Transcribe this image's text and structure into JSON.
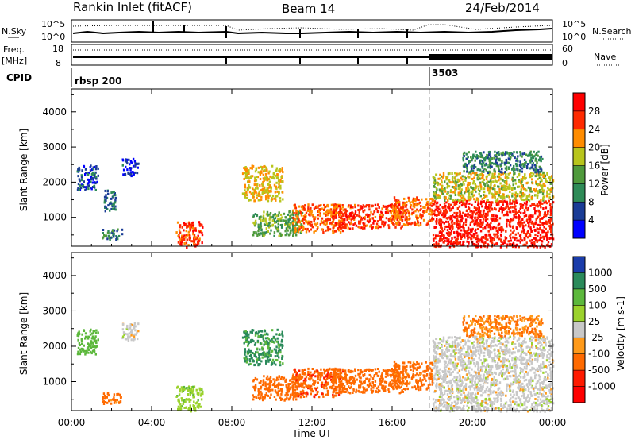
{
  "header": {
    "title": "Rankin Inlet (fitACF)",
    "beam": "Beam 14",
    "date": "24/Feb/2014"
  },
  "top_panels": {
    "nsky_label": "N.Sky",
    "nsearch_label": "N.Search",
    "noise_ticks": [
      "10^5",
      "10^0"
    ],
    "freq_label_1": "Freq.",
    "freq_label_2": "[MHz]",
    "freq_ticks": [
      "18",
      "8"
    ],
    "nave_label": "Nave",
    "nave_ticks": [
      "60",
      "0"
    ],
    "cpid_label": "CPID",
    "cpid_values": [
      {
        "name": "rbsp 200",
        "start_hour": 0
      },
      {
        "name": "3503",
        "start_hour": 18
      }
    ]
  },
  "chart_data": [
    {
      "type": "heatmap",
      "name": "power",
      "xlabel": "Time UT",
      "ylabel": "Slant Range [km]",
      "xlim": [
        0,
        24
      ],
      "ylim": [
        180,
        4650
      ],
      "x_tick_labels": [
        "00:00",
        "04:00",
        "08:00",
        "12:00",
        "16:00",
        "20:00",
        "00:00"
      ],
      "y_tick_labels": [
        "1000",
        "2000",
        "3000",
        "4000"
      ],
      "colorbar_label": "Power [dB]",
      "colorbar_ticks": [
        "4",
        "8",
        "12",
        "16",
        "20",
        "24",
        "28"
      ],
      "colorbar_range": [
        0,
        32
      ],
      "colors": [
        "#0000ff",
        "#1a3c96",
        "#2e8b57",
        "#4f9a3c",
        "#b8c51c",
        "#ff8c00",
        "#ff2a00",
        "#ff0000"
      ],
      "regions": [
        {
          "t0": 0.25,
          "t1": 1.3,
          "r0": 1800,
          "r1": 2500,
          "value": 6
        },
        {
          "t0": 1.6,
          "t1": 2.2,
          "r0": 1200,
          "r1": 1800,
          "value": 8
        },
        {
          "t0": 1.5,
          "t1": 2.5,
          "r0": 400,
          "r1": 700,
          "value": 10
        },
        {
          "t0": 2.5,
          "t1": 3.3,
          "r0": 2200,
          "r1": 2700,
          "value": 5
        },
        {
          "t0": 5.2,
          "t1": 6.5,
          "r0": 180,
          "r1": 900,
          "value": 26
        },
        {
          "t0": 8.5,
          "t1": 10.5,
          "r0": 1500,
          "r1": 2500,
          "value": 20
        },
        {
          "t0": 9.0,
          "t1": 11.5,
          "r0": 500,
          "r1": 1200,
          "value": 14
        },
        {
          "t0": 11.0,
          "t1": 13.5,
          "r0": 600,
          "r1": 1400,
          "value": 24
        },
        {
          "t0": 13.0,
          "t1": 16.5,
          "r0": 700,
          "r1": 1400,
          "value": 26
        },
        {
          "t0": 16.0,
          "t1": 18.0,
          "r0": 800,
          "r1": 1600,
          "value": 24
        },
        {
          "t0": 18.0,
          "t1": 24.0,
          "r0": 180,
          "r1": 1500,
          "value": 28
        },
        {
          "t0": 18.0,
          "t1": 24.0,
          "r0": 1500,
          "r1": 2300,
          "value": 18
        },
        {
          "t0": 19.5,
          "t1": 23.5,
          "r0": 2300,
          "r1": 2900,
          "value": 10
        }
      ]
    },
    {
      "type": "heatmap",
      "name": "velocity",
      "xlabel": "Time UT",
      "ylabel": "Slant Range [km]",
      "xlim": [
        0,
        24
      ],
      "ylim": [
        180,
        4650
      ],
      "x_tick_labels": [
        "00:00",
        "04:00",
        "08:00",
        "12:00",
        "16:00",
        "20:00",
        "00:00"
      ],
      "y_tick_labels": [
        "1000",
        "2000",
        "3000",
        "4000"
      ],
      "colorbar_label": "Velocity [m s-1]",
      "colorbar_ticks": [
        "1000",
        "500",
        "100",
        "25",
        "-25",
        "-100",
        "-500",
        "-1000"
      ],
      "colorbar_levels": [
        1000,
        500,
        100,
        25,
        -25,
        -100,
        -500,
        -1000
      ],
      "colors": [
        "#1a3caa",
        "#2a8a5a",
        "#5cb83c",
        "#9bd22c",
        "#c8c8c8",
        "#ff9a1a",
        "#ff6a00",
        "#ff1a00",
        "#ff0000"
      ],
      "regions": [
        {
          "t0": 0.25,
          "t1": 1.3,
          "r0": 1800,
          "r1": 2500,
          "value": 200
        },
        {
          "t0": 1.5,
          "t1": 2.5,
          "r0": 400,
          "r1": 700,
          "value": -150
        },
        {
          "t0": 2.5,
          "t1": 3.3,
          "r0": 2200,
          "r1": 2700,
          "value": 0
        },
        {
          "t0": 5.2,
          "t1": 6.5,
          "r0": 180,
          "r1": 900,
          "value": 80
        },
        {
          "t0": 8.5,
          "t1": 10.5,
          "r0": 1500,
          "r1": 2500,
          "value": 600
        },
        {
          "t0": 9.0,
          "t1": 11.5,
          "r0": 500,
          "r1": 1200,
          "value": -300
        },
        {
          "t0": 11.0,
          "t1": 13.5,
          "r0": 600,
          "r1": 1400,
          "value": -400
        },
        {
          "t0": 13.0,
          "t1": 16.5,
          "r0": 700,
          "r1": 1400,
          "value": -200
        },
        {
          "t0": 16.0,
          "t1": 18.0,
          "r0": 800,
          "r1": 1600,
          "value": -150
        },
        {
          "t0": 18.0,
          "t1": 24.0,
          "r0": 180,
          "r1": 1500,
          "value": 0
        },
        {
          "t0": 18.0,
          "t1": 24.0,
          "r0": 1500,
          "r1": 2300,
          "value": 0
        },
        {
          "t0": 19.5,
          "t1": 23.5,
          "r0": 2300,
          "r1": 2900,
          "value": -100
        }
      ]
    }
  ]
}
